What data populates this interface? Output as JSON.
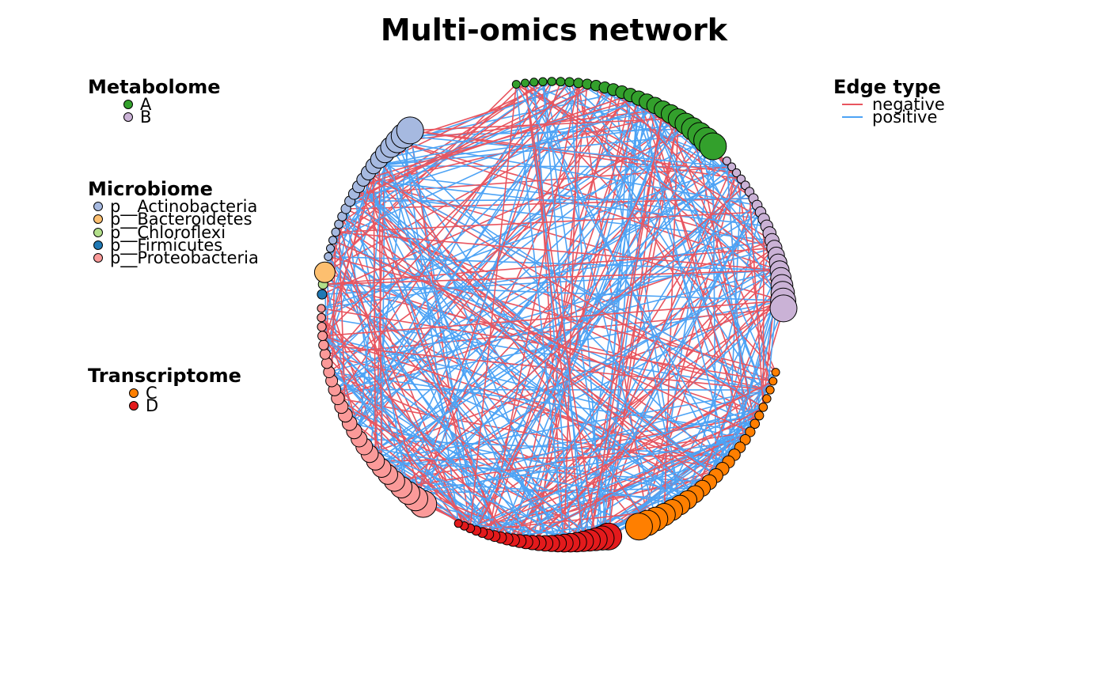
{
  "title": "Multi-omics network",
  "legends": {
    "metabolome": {
      "title": "Metabolome",
      "items": [
        {
          "label": "A",
          "color": "#33a02c"
        },
        {
          "label": "B",
          "color": "#cab2d6"
        }
      ]
    },
    "microbiome": {
      "title": "Microbiome",
      "items": [
        {
          "label": "p__Actinobacteria",
          "color": "#a6b9e0"
        },
        {
          "label": "p__Bacteroidetes",
          "color": "#fdbf6f"
        },
        {
          "label": "p__Chloroflexi",
          "color": "#b2df8a"
        },
        {
          "label": "p__Firmicutes",
          "color": "#1f78b4"
        },
        {
          "label": "p__Proteobacteria",
          "color": "#fb9a99"
        }
      ]
    },
    "transcriptome": {
      "title": "Transcriptome",
      "items": [
        {
          "label": "C",
          "color": "#ff7f00"
        },
        {
          "label": "D",
          "color": "#e31a1c"
        }
      ]
    },
    "edges": {
      "title": "Edge type",
      "items": [
        {
          "label": "negative",
          "color": "#e8555f"
        },
        {
          "label": "positive",
          "color": "#4da3f5"
        }
      ]
    }
  }
}
